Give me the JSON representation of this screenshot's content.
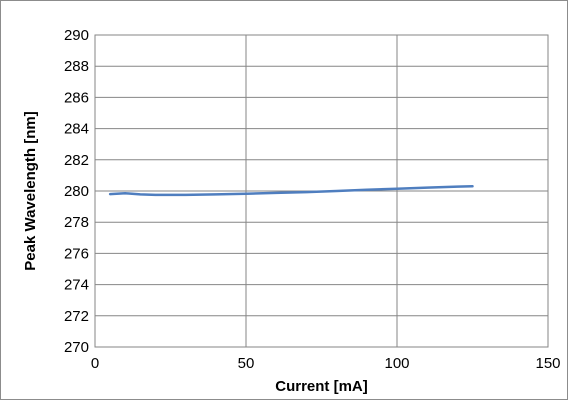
{
  "chart_data": {
    "type": "line",
    "title": "",
    "xlabel": "Current [mA]",
    "ylabel": "Peak Wavelength [nm]",
    "xlim": [
      0,
      150
    ],
    "ylim": [
      270,
      290
    ],
    "x_ticks": [
      0,
      50,
      100,
      150
    ],
    "y_ticks": [
      270,
      272,
      274,
      276,
      278,
      280,
      282,
      284,
      286,
      288,
      290
    ],
    "x_grid": true,
    "y_grid": true,
    "series": [
      {
        "color": "#4f7ebf",
        "x": [
          5,
          10,
          15,
          20,
          30,
          40,
          50,
          60,
          70,
          80,
          90,
          100,
          110,
          120,
          125
        ],
        "y": [
          279.8,
          279.85,
          279.78,
          279.75,
          279.75,
          279.78,
          279.82,
          279.88,
          279.93,
          280.0,
          280.08,
          280.15,
          280.22,
          280.28,
          280.3
        ]
      }
    ]
  }
}
